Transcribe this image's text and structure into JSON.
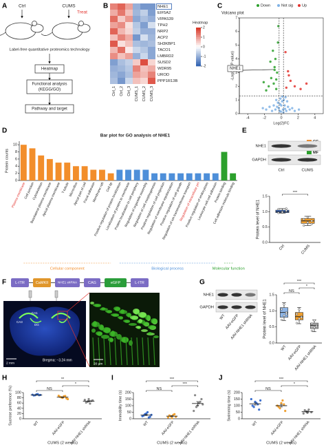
{
  "figure": {
    "panel_labels": [
      "A",
      "B",
      "C",
      "D",
      "E",
      "F",
      "G",
      "H",
      "I",
      "J"
    ],
    "a": {
      "ctrl": "Ctrl",
      "cums": "CUMS",
      "treat": "Treat",
      "method": "Label-free quantitative proteomics technology",
      "steps": [
        [
          "Heatmap"
        ],
        [
          "Functional analysis",
          "(KEGG/GO)"
        ],
        [
          "Pathway and target"
        ]
      ]
    },
    "e": {
      "rows": [
        "NHE1",
        "GAPDH"
      ],
      "lanes": [
        "Ctrl",
        "CUMS"
      ]
    },
    "f": {
      "construct": [
        "L-ITR",
        "CaMKII",
        "NHE1 shRNA",
        "CAG",
        "eGFP",
        "L-ITR"
      ],
      "regions": [
        "CA1",
        "CA3",
        "DG"
      ],
      "bregma": "Bregma: −3.24 mm",
      "scale_1": "2 mm",
      "scale_2": "20 μm"
    },
    "g": {
      "rows": [
        "NHE1",
        "GAPDH"
      ],
      "lanes": [
        "WT",
        "AAV-eGFP",
        "AAV-NHE1 shRNA"
      ]
    }
  },
  "chart_data": [
    {
      "type": "heatmap",
      "title": "Heatmap",
      "rows": [
        "NHE1",
        "EIF5A2",
        "VIPAS39",
        "TPH2",
        "NRP2",
        "ACP2",
        "SH3KBP1",
        "TACO1",
        "LMBRD2",
        "SUSD2",
        "WDR95",
        "UROD",
        "PPP1R13B"
      ],
      "columns": [
        "Ctrl_1",
        "Ctrl_2",
        "Ctrl_3",
        "CUMS_1",
        "CUMS_2",
        "CUMS_3"
      ],
      "values": [
        [
          1.2,
          1.5,
          0.9,
          -1.0,
          -1.3,
          -1.3
        ],
        [
          0.8,
          1.3,
          0.6,
          -0.9,
          -0.6,
          -1.2
        ],
        [
          1.4,
          0.5,
          1.0,
          -1.1,
          -0.8,
          -1.0
        ],
        [
          0.9,
          1.1,
          0.3,
          -0.7,
          -1.2,
          -0.4
        ],
        [
          1.5,
          0.7,
          0.4,
          -0.6,
          -1.0,
          -1.0
        ],
        [
          0.6,
          1.2,
          0.8,
          -1.3,
          -0.4,
          -0.9
        ],
        [
          1.6,
          0.3,
          0.6,
          -0.8,
          -0.9,
          -0.8
        ],
        [
          0.7,
          1.4,
          0.2,
          -0.5,
          -0.7,
          -1.1
        ],
        [
          1.1,
          0.6,
          0.9,
          -1.0,
          -0.5,
          -1.1
        ],
        [
          -1.2,
          -0.8,
          -0.6,
          0.5,
          1.7,
          0.4
        ],
        [
          -1.0,
          -0.9,
          -0.7,
          1.2,
          0.6,
          0.8
        ],
        [
          -0.9,
          -1.1,
          -0.8,
          0.9,
          0.7,
          1.2
        ],
        [
          -0.8,
          -1.3,
          -0.5,
          0.6,
          0.4,
          1.6
        ]
      ],
      "zlim": [
        -2,
        2
      ],
      "zticks": [
        2,
        1,
        0,
        -1,
        -2
      ],
      "low_color": "#2c5fb0",
      "high_color": "#d7301f",
      "highlight": "NHE1"
    },
    {
      "type": "scatter",
      "title": "Volcano plot",
      "xlabel": "Log(2)FC",
      "ylabel": "-Log(10)(P value)",
      "xlim": [
        -5,
        5
      ],
      "xticks": [
        -4,
        -2,
        0,
        2,
        4
      ],
      "ylim": [
        0,
        7
      ],
      "yticks": [
        0,
        1,
        2,
        3,
        4,
        5,
        6,
        7
      ],
      "hline": 1.3,
      "vlines": [
        -0.26,
        0.26
      ],
      "series": [
        {
          "name": "Down",
          "color": "#2ca02c",
          "x": [
            -0.6,
            -0.9,
            -1.2,
            -0.5,
            -0.8,
            -1.5,
            -0.7,
            -1.0,
            -0.4,
            -1.8,
            -0.6,
            -1.3,
            -0.35,
            -2.1,
            -0.8
          ],
          "y": [
            1.8,
            2.2,
            2.6,
            3.0,
            3.4,
            2.0,
            4.0,
            4.6,
            5.2,
            1.7,
            2.5,
            3.8,
            6.4,
            2.3,
            3.2
          ]
        },
        {
          "name": "Not sig",
          "color": "#7fb2e5",
          "x": [
            -0.3,
            0.2,
            0.1,
            -0.1,
            0.4,
            -0.5,
            0.6,
            -0.7,
            0.8,
            -0.2,
            0.3,
            -0.4,
            0.0,
            1.0,
            -1.1,
            0.5,
            -0.6,
            1.3,
            -1.4,
            0.15,
            -0.15,
            0.7,
            -0.9,
            1.6,
            -1.8,
            0.25,
            -0.05,
            2.1,
            -2.2,
            0.45
          ],
          "y": [
            0.4,
            0.3,
            0.9,
            1.1,
            0.6,
            0.5,
            0.2,
            0.3,
            0.5,
            0.2,
            1.0,
            0.8,
            0.6,
            0.3,
            0.2,
            1.2,
            1.0,
            0.4,
            0.5,
            1.25,
            0.7,
            0.9,
            0.6,
            0.2,
            0.3,
            0.1,
            0.15,
            0.3,
            0.4,
            0.35
          ]
        },
        {
          "name": "Up",
          "color": "#e3342f",
          "x": [
            0.6,
            1.1,
            0.8,
            1.6,
            0.5,
            2.3,
            0.9,
            3.0
          ],
          "y": [
            1.9,
            2.4,
            3.1,
            2.0,
            4.5,
            1.8,
            2.8,
            2.2
          ]
        }
      ],
      "annotation": "NHE1"
    },
    {
      "type": "bar",
      "title": "Bar plot for GO analysis of NHE1",
      "ylabel": "Protein counts",
      "ylim": [
        0,
        11
      ],
      "yticks": [
        0,
        2,
        4,
        6,
        8,
        10
      ],
      "highlight_color": "#e3342f",
      "series": [
        {
          "name": "CC",
          "group": "Cellular component",
          "color": "#f28e2b",
          "highlight": "Plasma membrane",
          "categories": [
            "Plasma membrane",
            "Cell junction",
            "Cytoskeleton",
            "Basolateral plasma membrane",
            "Apical plasma membrane",
            "T-tubule",
            "Microvillus",
            "Apical part of cell",
            "Focal adhesion",
            "Membrane raft",
            "Cell tip"
          ],
          "values": [
            10,
            9,
            7,
            6,
            5,
            5,
            4,
            4,
            3,
            3,
            2
          ]
        },
        {
          "name": "BP",
          "group": "Biological process",
          "color": "#4e8fd9",
          "highlight": "Regulation of intracellular pH",
          "categories": [
            "Positive regulation of protein localization",
            "Localization of protein to membrane",
            "Protein localization to cell periphery",
            "Regulation of organelle assembly",
            "Regulation of cell morphogenesis",
            "Positive regulation of cell projection",
            "Regulation of membrane repolarization",
            "Positive regulation of cell growth",
            "Regulation of ion transmembrane transport",
            "Regulation of intracellular pH",
            "Positive regulation of endocytosis",
            "Leukocyte cell-cell adhesion"
          ],
          "values": [
            3,
            3,
            3,
            3,
            2,
            2,
            2,
            2,
            2,
            2,
            2,
            2
          ]
        },
        {
          "name": "MF",
          "group": "Molecular function",
          "color": "#2ca02c",
          "highlight": null,
          "categories": [
            "Protein binding",
            "Cell adhesion molecule binding"
          ],
          "values": [
            8,
            2
          ]
        }
      ]
    },
    {
      "type": "box",
      "ylabel": "Protein level of NHE1",
      "ylim": [
        0,
        1.5
      ],
      "yticks": [
        {
          "value": 0,
          "label": "0.0"
        },
        0.5,
        {
          "value": 1,
          "label": "1.0"
        },
        1.5
      ],
      "groups": [
        {
          "name": "Ctrl",
          "color": "#3b6fcf",
          "min": 0.95,
          "q1": 0.97,
          "median": 1.0,
          "q3": 1.05,
          "max": 1.1,
          "points": [
            0.96,
            1.0,
            1.03,
            1.08,
            0.98,
            1.1
          ]
        },
        {
          "name": "CUMS",
          "color": "#f0a030",
          "min": 0.55,
          "q1": 0.62,
          "median": 0.7,
          "q3": 0.78,
          "max": 0.85,
          "points": [
            0.55,
            0.65,
            0.7,
            0.75,
            0.82,
            0.6
          ]
        }
      ],
      "significance": [
        {
          "between": [
            "Ctrl",
            "CUMS"
          ],
          "label": "***"
        }
      ]
    },
    {
      "type": "box",
      "ylabel": "Protein level of NHE1",
      "ylim": [
        0,
        1.5
      ],
      "yticks": [
        {
          "value": 0,
          "label": "0.0"
        },
        0.5,
        {
          "value": 1,
          "label": "1.0"
        },
        1.5
      ],
      "groups": [
        {
          "name": "WT",
          "color": "#8fb6e8",
          "min": 0.7,
          "q1": 0.8,
          "median": 0.95,
          "q3": 1.1,
          "max": 1.25,
          "points": [
            0.72,
            0.85,
            0.95,
            1.05,
            1.2,
            0.9
          ]
        },
        {
          "name": "AAV-eGFP",
          "color": "#f0a030",
          "min": 0.6,
          "q1": 0.72,
          "median": 0.82,
          "q3": 0.95,
          "max": 1.1,
          "points": [
            0.62,
            0.75,
            0.82,
            0.9,
            1.05,
            0.8
          ]
        },
        {
          "name": "AAV-NHE1 shRNA",
          "color": "#b0b0b0",
          "min": 0.35,
          "q1": 0.45,
          "median": 0.55,
          "q3": 0.62,
          "max": 0.72,
          "points": [
            0.38,
            0.48,
            0.55,
            0.6,
            0.7,
            0.52
          ]
        }
      ],
      "significance": [
        {
          "between": [
            "WT",
            "AAV-eGFP"
          ],
          "label": "NS"
        },
        {
          "between": [
            "AAV-eGFP",
            "AAV-NHE1 shRNA"
          ],
          "label": "*"
        },
        {
          "between": [
            "WT",
            "AAV-NHE1 shRNA"
          ],
          "label": "***"
        }
      ]
    },
    {
      "type": "dot",
      "ylabel": "Sucrose preference (%)",
      "xlabel": "CUMS (2 weeks)",
      "ylim": [
        0,
        100
      ],
      "yticks": [
        0,
        20,
        40,
        60,
        80,
        100
      ],
      "groups": [
        {
          "name": "WT",
          "color": "#3b6fcf",
          "values": [
            92,
            90,
            94,
            91,
            89,
            93,
            90
          ],
          "mean": 91,
          "error": 1
        },
        {
          "name": "AAV-eGFP",
          "color": "#f0a030",
          "values": [
            88,
            82,
            86,
            78,
            84,
            80,
            87,
            75
          ],
          "mean": 82.5,
          "error": 1.7
        },
        {
          "name": "AAV-NHE1 shRNA",
          "color": "#888888",
          "values": [
            72,
            65,
            58,
            70,
            62,
            75,
            68
          ],
          "mean": 67,
          "error": 2.3
        }
      ],
      "significance": [
        {
          "between": [
            "WT",
            "AAV-eGFP"
          ],
          "label": "NS"
        },
        {
          "between": [
            "AAV-eGFP",
            "AAV-NHE1 shRNA"
          ],
          "label": "*"
        },
        {
          "between": [
            "WT",
            "AAV-NHE1 shRNA"
          ],
          "label": "**"
        }
      ]
    },
    {
      "type": "dot",
      "ylabel": "Immobility time (s)",
      "xlabel": "CUMS (2 weeks)",
      "ylim": [
        0,
        200
      ],
      "yticks": [
        0,
        50,
        100,
        150,
        200
      ],
      "groups": [
        {
          "name": "WT",
          "color": "#3b6fcf",
          "values": [
            20,
            35,
            50,
            15,
            25,
            40,
            10,
            30
          ],
          "mean": 28,
          "error": 5
        },
        {
          "name": "AAV-eGFP",
          "color": "#f0a030",
          "values": [
            10,
            20,
            30,
            15,
            25,
            5,
            35
          ],
          "mean": 20,
          "error": 4
        },
        {
          "name": "AAV-NHE1 shRNA",
          "color": "#888888",
          "values": [
            60,
            90,
            120,
            150,
            180,
            100,
            130,
            110
          ],
          "mean": 117,
          "error": 14
        }
      ],
      "significance": [
        {
          "between": [
            "WT",
            "AAV-eGFP"
          ],
          "label": "NS"
        },
        {
          "between": [
            "AAV-eGFP",
            "AAV-NHE1 shRNA"
          ],
          "label": "***"
        },
        {
          "between": [
            "WT",
            "AAV-NHE1 shRNA"
          ],
          "label": "***"
        }
      ]
    },
    {
      "type": "dot",
      "ylabel": "Swimming time (s)",
      "xlabel": "CUMS (2 weeks)",
      "ylim": [
        0,
        200
      ],
      "yticks": [
        0,
        50,
        100,
        150,
        200
      ],
      "groups": [
        {
          "name": "WT",
          "color": "#3b6fcf",
          "values": [
            150,
            90,
            120,
            70,
            100,
            130,
            110,
            140
          ],
          "mean": 114,
          "error": 9
        },
        {
          "name": "AAV-eGFP",
          "color": "#f0a030",
          "values": [
            100,
            80,
            140,
            60,
            90,
            120,
            110
          ],
          "mean": 100,
          "error": 10
        },
        {
          "name": "AAV-NHE1 shRNA",
          "color": "#888888",
          "values": [
            40,
            55,
            70,
            50,
            65,
            45
          ],
          "mean": 54,
          "error": 5
        }
      ],
      "significance": [
        {
          "between": [
            "WT",
            "AAV-eGFP"
          ],
          "label": "NS"
        },
        {
          "between": [
            "AAV-eGFP",
            "AAV-NHE1 shRNA"
          ],
          "label": "*"
        },
        {
          "between": [
            "WT",
            "AAV-NHE1 shRNA"
          ],
          "label": "***"
        }
      ]
    }
  ]
}
